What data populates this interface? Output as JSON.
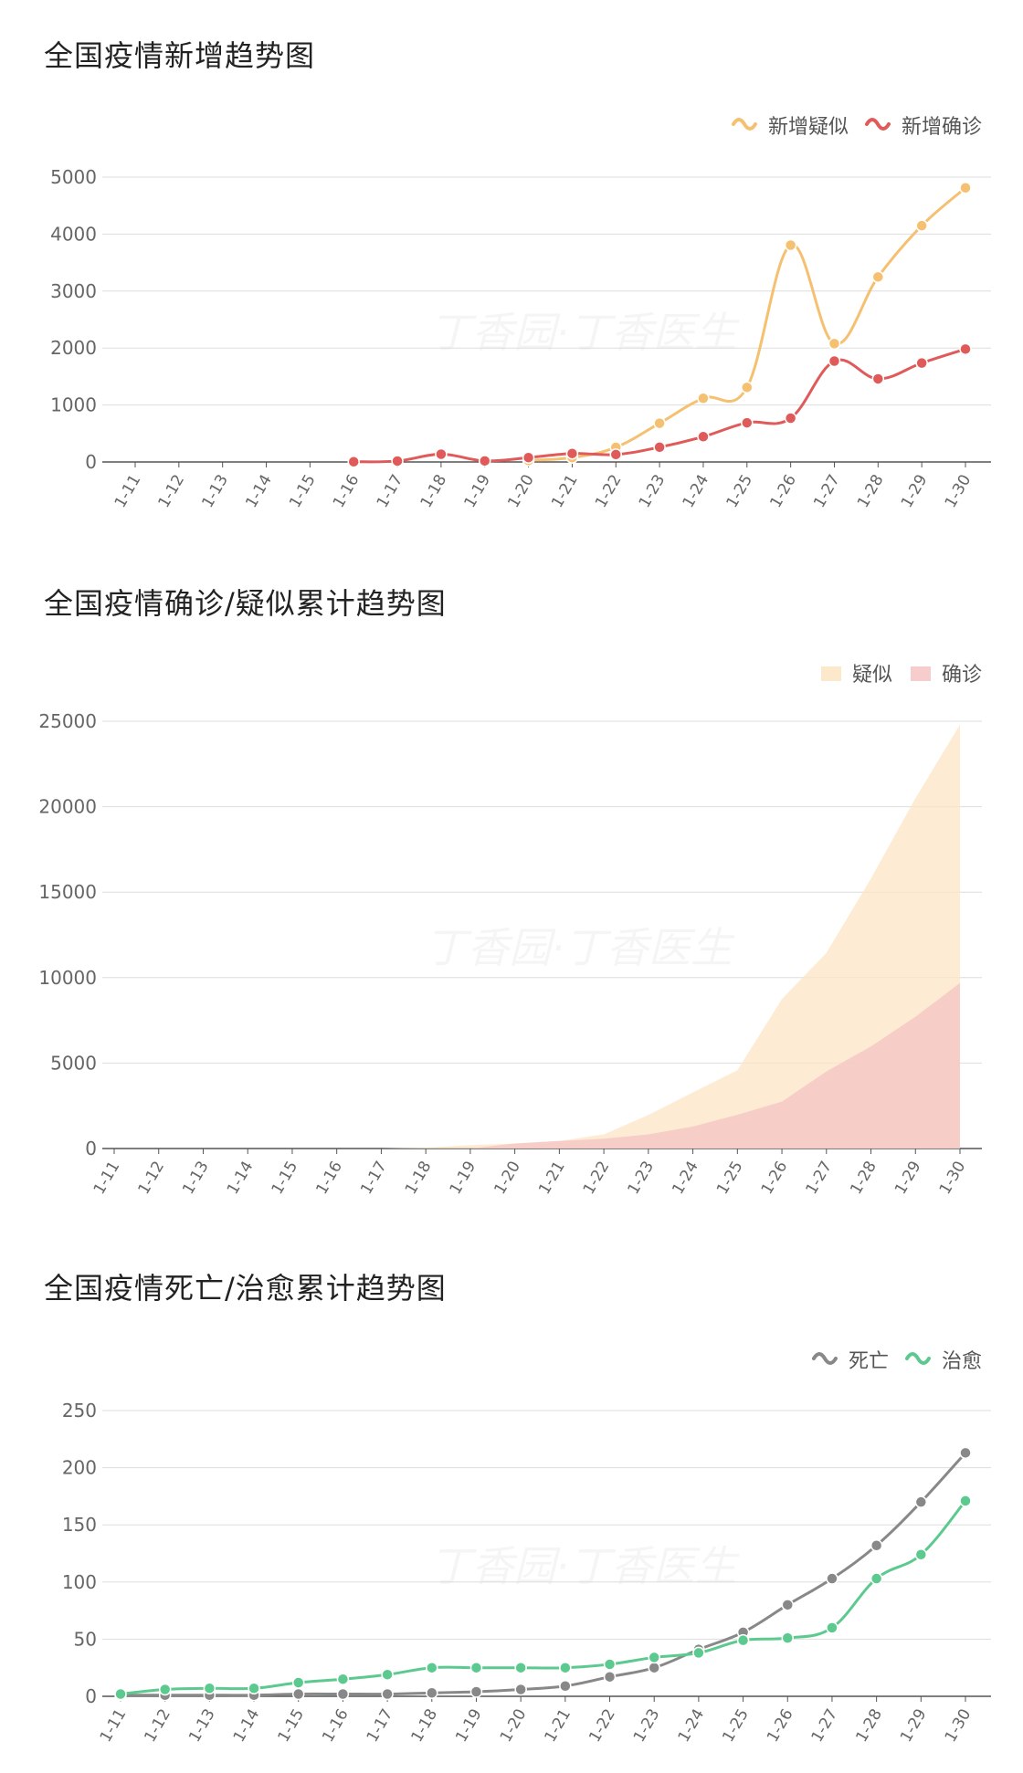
{
  "chart_data": [
    {
      "type": "line",
      "title": "全国疫情新增趋势图",
      "categories": [
        "1-11",
        "1-12",
        "1-13",
        "1-14",
        "1-15",
        "1-16",
        "1-17",
        "1-18",
        "1-19",
        "1-20",
        "1-21",
        "1-22",
        "1-23",
        "1-24",
        "1-25",
        "1-26",
        "1-27",
        "1-28",
        "1-29",
        "1-30"
      ],
      "series": [
        {
          "name": "新增疑似",
          "color": "#f5c070",
          "values": [
            null,
            null,
            null,
            null,
            null,
            null,
            null,
            null,
            null,
            27,
            77,
            257,
            680,
            1118,
            1309,
            3806,
            2077,
            3248,
            4148,
            4812
          ]
        },
        {
          "name": "新增确诊",
          "color": "#e05a5a",
          "values": [
            null,
            null,
            null,
            null,
            null,
            4,
            17,
            136,
            19,
            77,
            149,
            131,
            259,
            444,
            688,
            769,
            1771,
            1459,
            1737,
            1982
          ]
        }
      ],
      "yticks": [
        0,
        1000,
        2000,
        3000,
        4000,
        5000
      ],
      "ylim": [
        0,
        5000
      ],
      "legend": "top-right",
      "watermark": "丁香园·丁香医生"
    },
    {
      "type": "area",
      "title": "全国疫情确诊/疑似累计趋势图",
      "categories": [
        "1-11",
        "1-12",
        "1-13",
        "1-14",
        "1-15",
        "1-16",
        "1-17",
        "1-18",
        "1-19",
        "1-20",
        "1-21",
        "1-22",
        "1-23",
        "1-24",
        "1-25",
        "1-26",
        "1-27",
        "1-28",
        "1-29",
        "1-30"
      ],
      "series": [
        {
          "name": "疑似",
          "color": "#fce5c4",
          "values": [
            0,
            0,
            0,
            0,
            0,
            0,
            0,
            54,
            200,
            291,
            440,
            830,
            1965,
            3287,
            4580,
            8750,
            11450,
            15800,
            20500,
            24800
          ]
        },
        {
          "name": "确诊",
          "color": "#f5c6c6",
          "values": [
            0,
            0,
            0,
            0,
            0,
            0,
            0,
            0,
            0,
            291,
            440,
            571,
            830,
            1287,
            1975,
            2744,
            4515,
            5974,
            7711,
            9692
          ]
        }
      ],
      "yticks": [
        0,
        5000,
        10000,
        15000,
        20000,
        25000
      ],
      "ylim": [
        0,
        25000
      ],
      "legend": "top-right",
      "watermark": "丁香园·丁香医生"
    },
    {
      "type": "line",
      "title": "全国疫情死亡/治愈累计趋势图",
      "categories": [
        "1-11",
        "1-12",
        "1-13",
        "1-14",
        "1-15",
        "1-16",
        "1-17",
        "1-18",
        "1-19",
        "1-20",
        "1-21",
        "1-22",
        "1-23",
        "1-24",
        "1-25",
        "1-26",
        "1-27",
        "1-28",
        "1-29",
        "1-30"
      ],
      "series": [
        {
          "name": "死亡",
          "color": "#888888",
          "values": [
            1,
            1,
            1,
            1,
            2,
            2,
            2,
            3,
            4,
            6,
            9,
            17,
            25,
            41,
            56,
            80,
            103,
            132,
            170,
            213
          ]
        },
        {
          "name": "治愈",
          "color": "#5cc98e",
          "values": [
            2,
            6,
            7,
            7,
            12,
            15,
            19,
            25,
            25,
            25,
            25,
            28,
            34,
            38,
            49,
            51,
            60,
            103,
            124,
            171
          ]
        }
      ],
      "yticks": [
        0,
        50,
        100,
        150,
        200,
        250
      ],
      "ylim": [
        0,
        250
      ],
      "legend": "top-right",
      "watermark": "丁香园·丁香医生"
    }
  ]
}
